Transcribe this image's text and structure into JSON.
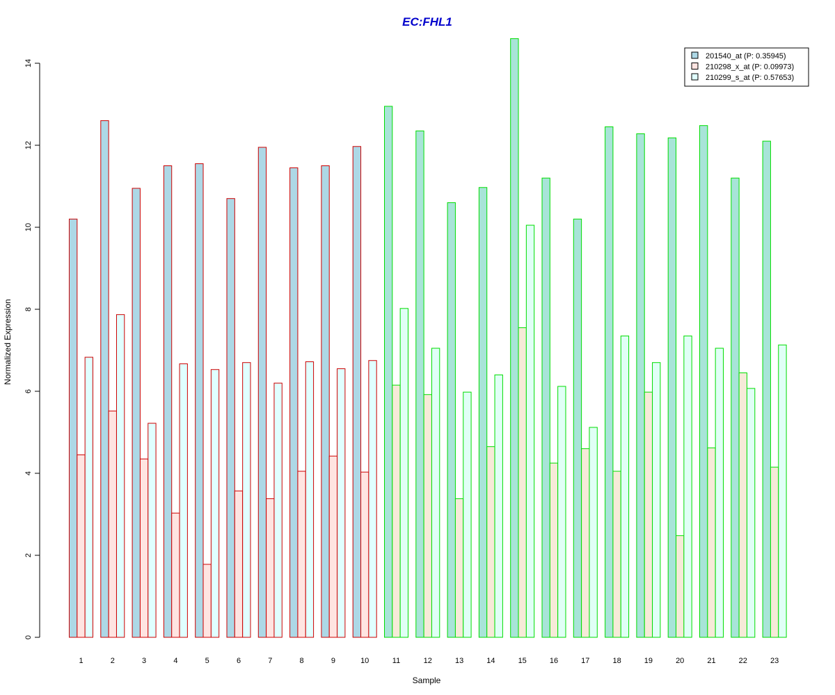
{
  "chart_data": {
    "type": "bar",
    "title": "EC:FHL1",
    "xlabel": "Sample",
    "ylabel": "Normalized Expression",
    "ylim": [
      0,
      14.5
    ],
    "yticks": [
      "0",
      "2",
      "4",
      "6",
      "8",
      "10",
      "12",
      "14"
    ],
    "categories": [
      "1",
      "2",
      "3",
      "4",
      "5",
      "6",
      "7",
      "8",
      "9",
      "10",
      "11",
      "12",
      "13",
      "14",
      "15",
      "16",
      "17",
      "18",
      "19",
      "20",
      "21",
      "22",
      "23"
    ],
    "groups": [
      {
        "samples": [
          "1",
          "2",
          "3",
          "4",
          "5",
          "6",
          "7",
          "8",
          "9",
          "10"
        ],
        "border_color": "#cc0000"
      },
      {
        "samples": [
          "11",
          "12",
          "13",
          "14",
          "15",
          "16",
          "17",
          "18",
          "19",
          "20",
          "21",
          "22",
          "23"
        ],
        "border_color": "#00dd00"
      }
    ],
    "series": [
      {
        "name": "201540_at (P: 0.35945)",
        "values": [
          10.2,
          12.6,
          10.95,
          11.5,
          11.55,
          10.7,
          11.95,
          11.45,
          11.5,
          11.97,
          12.95,
          12.35,
          10.6,
          10.97,
          14.6,
          11.2,
          10.2,
          12.45,
          12.28,
          12.18,
          12.48,
          11.2,
          12.1
        ]
      },
      {
        "name": "210298_x_at (P: 0.09973)",
        "values": [
          4.45,
          5.52,
          4.35,
          3.03,
          1.78,
          3.57,
          3.38,
          4.05,
          4.42,
          4.03,
          6.15,
          5.92,
          3.38,
          4.65,
          7.55,
          4.25,
          4.6,
          4.05,
          5.98,
          2.48,
          4.62,
          6.45,
          4.15
        ]
      },
      {
        "name": "210299_s_at (P: 0.57653)",
        "values": [
          6.83,
          7.87,
          5.22,
          6.67,
          6.53,
          6.7,
          6.2,
          6.72,
          6.55,
          6.75,
          8.02,
          7.05,
          5.98,
          6.4,
          10.05,
          6.12,
          5.12,
          7.35,
          6.7,
          7.35,
          7.05,
          6.07,
          7.13
        ]
      }
    ],
    "colors": {
      "title": "#0000cc",
      "series_fills_group1": [
        "#add8e6",
        "#ffe4e1",
        "#e0ffff"
      ],
      "series_fills_group2": [
        "#a8e4d8",
        "#f6ead8",
        "#e0fff6"
      ],
      "legend_fills": [
        "#add8e6",
        "#ffe4e1",
        "#e0ffff"
      ]
    },
    "legend_position": "top-right",
    "grid": false
  }
}
